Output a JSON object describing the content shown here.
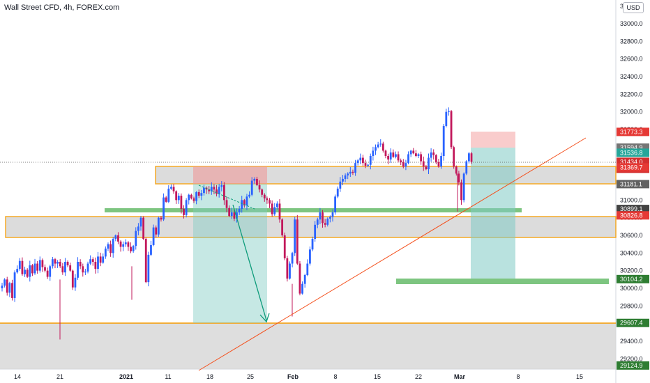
{
  "header": {
    "title": "Wall Street CFD, 4h, FOREX.com",
    "currency_label": "USD",
    "axis_top_partial_label": "3"
  },
  "colors": {
    "up_candle": "#2962ff",
    "down_candle": "#c2185b",
    "zone_fill": "#d6d6d6",
    "zone_border": "#f59c00",
    "green_zone": "#66bb6a",
    "trendline": "#f4511e",
    "target_fill": "#b2dfdb",
    "stop_fill": "#f8c7c7",
    "arrow": "#0d9b7a"
  },
  "chart_data": {
    "type": "candlestick",
    "title": "Wall Street CFD, 4h, FOREX.com",
    "x_axis": {
      "tick_labels": [
        "14",
        "21",
        "2021",
        "11",
        "18",
        "25",
        "Feb",
        "8",
        "15",
        "22",
        "Mar",
        "8",
        "15"
      ]
    },
    "y_axis": {
      "range": [
        29050,
        33200
      ],
      "tick_labels": [
        "29200.0",
        "29400.0",
        "29600.0",
        "29800.0",
        "30000.0",
        "30200.0",
        "30400.0",
        "30600.0",
        "30800.0",
        "31000.0",
        "31200.0",
        "31400.0",
        "31600.0",
        "31800.0",
        "32000.0",
        "32200.0",
        "32400.0",
        "32600.0",
        "32800.0",
        "33000.0"
      ]
    },
    "price_tags": [
      {
        "label": "31773.3",
        "value": 31773.3,
        "color": "#e53935"
      },
      {
        "label": "31594.9",
        "value": 31594.9,
        "color": "#757575"
      },
      {
        "label": "31536.8",
        "value": 31536.8,
        "color": "#26a69a"
      },
      {
        "label": "31434.0",
        "value": 31434.0,
        "color": "#d32f2f",
        "countdown": "02:48:43"
      },
      {
        "label": "31369.7",
        "value": 31369.7,
        "color": "#e53935"
      },
      {
        "label": "31181.1",
        "value": 31181.1,
        "color": "#616161"
      },
      {
        "label": "30899.1",
        "value": 30899.1,
        "color": "#424242"
      },
      {
        "label": "30826.8",
        "value": 30826.8,
        "color": "#e53935"
      },
      {
        "label": "30104.2",
        "value": 30104.2,
        "color": "#2e7d32"
      },
      {
        "label": "29607.4",
        "value": 29607.4,
        "color": "#2e7d32"
      },
      {
        "label": "29124.9",
        "value": 29124.9,
        "color": "#2e7d32"
      }
    ],
    "candles_close": [
      30030,
      30100,
      29950,
      30060,
      29890,
      30180,
      30220,
      30310,
      30160,
      30210,
      30130,
      30260,
      30170,
      30280,
      30200,
      30320,
      30240,
      30200,
      30130,
      30250,
      30330,
      30280,
      30300,
      30250,
      30180,
      30300,
      30260,
      30200,
      30010,
      30120,
      30300,
      30250,
      30180,
      30190,
      30280,
      30330,
      30300,
      30220,
      30360,
      30290,
      30360,
      30450,
      30500,
      30400,
      30560,
      30600,
      30530,
      30470,
      30500,
      30520,
      30470,
      30420,
      30480,
      30650,
      30700,
      30800,
      30560,
      30070,
      30380,
      30490,
      30690,
      30610,
      30800,
      30780,
      31030,
      30980,
      31130,
      31150,
      31100,
      31000,
      31050,
      30900,
      30830,
      31000,
      31060,
      31020,
      30990,
      31090,
      31050,
      31080,
      31140,
      31120,
      31100,
      31150,
      31120,
      31070,
      31150,
      31170,
      31000,
      30910,
      30820,
      30860,
      30790,
      30860,
      30900,
      31000,
      30940,
      31040,
      31060,
      31220,
      31240,
      31170,
      31120,
      31060,
      31020,
      31000,
      30960,
      30840,
      30920,
      30960,
      30780,
      30600,
      30340,
      30110,
      30280,
      30400,
      30780,
      30280,
      29940,
      30050,
      30150,
      30280,
      30440,
      30560,
      30720,
      30780,
      30860,
      30740,
      30720,
      30790,
      30810,
      30860,
      31040,
      31130,
      31210,
      31240,
      31280,
      31300,
      31320,
      31310,
      31420,
      31450,
      31480,
      31420,
      31390,
      31400,
      31500,
      31560,
      31600,
      31630,
      31640,
      31560,
      31500,
      31460,
      31540,
      31490,
      31520,
      31450,
      31430,
      31380,
      31420,
      31520,
      31560,
      31530,
      31500,
      31520,
      31440,
      31380,
      31350,
      31480,
      31540,
      31510,
      31430,
      31380,
      31500,
      31840,
      32000,
      32010,
      31600,
      31380,
      31300,
      31200,
      31000,
      31300,
      31440,
      31530,
      31434
    ]
  }
}
